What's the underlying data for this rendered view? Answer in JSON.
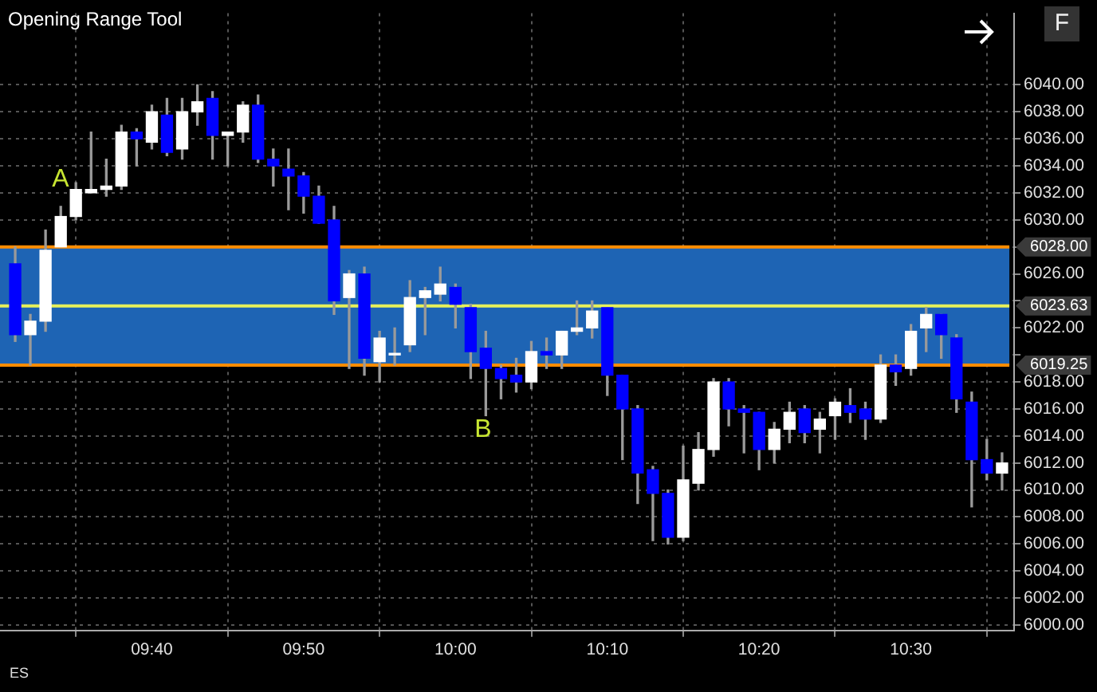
{
  "chart_data": {
    "type": "candlestick",
    "title": "Opening Range Tool",
    "x": [
      9.5167,
      9.5333,
      9.55,
      9.5667,
      9.5833,
      9.6,
      9.6167,
      9.6333,
      9.65,
      9.6667,
      9.6833,
      9.7,
      9.7167,
      9.7333,
      9.75,
      9.7667,
      9.7833,
      9.8,
      9.8167,
      9.8333,
      9.85,
      9.8667,
      9.8833,
      9.9,
      9.9167,
      9.9333,
      9.95,
      9.9667,
      9.9833,
      10,
      10.0167,
      10.0333,
      10.05,
      10.0667,
      10.0833,
      10.1,
      10.1167,
      10.1333,
      10.15,
      10.1667,
      10.1833,
      10.2,
      10.2167,
      10.2333,
      10.25,
      10.2667,
      10.2833,
      10.3,
      10.3167,
      10.3333,
      10.35,
      10.3667,
      10.3833,
      10.4,
      10.4167,
      10.4333,
      10.45,
      10.4667,
      10.4833,
      10.5,
      10.5167,
      10.5333,
      10.55,
      10.5667,
      10.5833,
      10.6
    ],
    "ohlc": [
      [
        6026.75,
        6028,
        6021,
        6021.5
      ],
      [
        6021.5,
        6023,
        6019.25,
        6022.5
      ],
      [
        6022.5,
        6029.25,
        6021.75,
        6027.75
      ],
      [
        6028,
        6031,
        6028,
        6030.25
      ],
      [
        6030.25,
        6032.75,
        6030,
        6032.25
      ],
      [
        6032,
        6036.5,
        6032,
        6032.25
      ],
      [
        6032.25,
        6034.5,
        6031.75,
        6032.5
      ],
      [
        6032.5,
        6037,
        6032.25,
        6036.5
      ],
      [
        6036.5,
        6036.75,
        6034,
        6036
      ],
      [
        6035.75,
        6038.5,
        6035.25,
        6038
      ],
      [
        6037.75,
        6039,
        6034.75,
        6035
      ],
      [
        6035.25,
        6039,
        6034.5,
        6038
      ],
      [
        6038,
        6040,
        6037,
        6038.75
      ],
      [
        6039,
        6039.5,
        6034.5,
        6036.25
      ],
      [
        6036.25,
        6036.5,
        6034,
        6036.5
      ],
      [
        6036.5,
        6038.75,
        6035.75,
        6038.5
      ],
      [
        6038.5,
        6039.25,
        6034.25,
        6034.5
      ],
      [
        6034.5,
        6035.25,
        6032.5,
        6034
      ],
      [
        6033.75,
        6035.25,
        6030.75,
        6033.25
      ],
      [
        6033.25,
        6033.5,
        6030.5,
        6031.75
      ],
      [
        6031.75,
        6032.5,
        6029.75,
        6029.75
      ],
      [
        6030,
        6031,
        6023,
        6024
      ],
      [
        6024.25,
        6026.25,
        6019,
        6026
      ],
      [
        6026,
        6026.5,
        6018.5,
        6019.75
      ],
      [
        6019.5,
        6021.75,
        6018,
        6021.25
      ],
      [
        6020,
        6022,
        6019.25,
        6020
      ],
      [
        6020.75,
        6025.5,
        6020.25,
        6024.25
      ],
      [
        6024.25,
        6025,
        6021.5,
        6024.75
      ],
      [
        6024.5,
        6026.5,
        6024,
        6025.25
      ],
      [
        6025,
        6025.25,
        6022,
        6023.75
      ],
      [
        6023.5,
        6023.75,
        6018.25,
        6020.25
      ],
      [
        6020.5,
        6021.75,
        6015.5,
        6019
      ],
      [
        6019,
        6019.25,
        6016.75,
        6018.25
      ],
      [
        6018.5,
        6019.75,
        6017.25,
        6018
      ],
      [
        6018,
        6021,
        6017.5,
        6020.25
      ],
      [
        6020.25,
        6021.25,
        6019,
        6020
      ],
      [
        6020,
        6021.75,
        6019,
        6021.75
      ],
      [
        6021.75,
        6024,
        6021.5,
        6022
      ],
      [
        6022,
        6024,
        6021.25,
        6023.25
      ],
      [
        6023.5,
        6023.5,
        6017,
        6018.5
      ],
      [
        6018.5,
        6018.5,
        6012.25,
        6016
      ],
      [
        6016,
        6016.25,
        6009,
        6011.25
      ],
      [
        6011.5,
        6011.75,
        6006.25,
        6009.75
      ],
      [
        6009.75,
        6010,
        6006,
        6006.5
      ],
      [
        6006.5,
        6013.25,
        6006.25,
        6010.75
      ],
      [
        6010.5,
        6014.25,
        6010,
        6013
      ],
      [
        6013,
        6018.25,
        6012.5,
        6018
      ],
      [
        6018,
        6018.25,
        6014.75,
        6016
      ],
      [
        6016,
        6016.25,
        6012.75,
        6015.75
      ],
      [
        6015.75,
        6015.75,
        6011.5,
        6013
      ],
      [
        6013,
        6015,
        6012,
        6014.5
      ],
      [
        6014.5,
        6016.5,
        6013.5,
        6015.75
      ],
      [
        6016,
        6016.25,
        6013.5,
        6014.25
      ],
      [
        6014.5,
        6015.75,
        6012.75,
        6015.25
      ],
      [
        6015.5,
        6016.75,
        6013.75,
        6016.5
      ],
      [
        6016.25,
        6017.5,
        6015,
        6015.75
      ],
      [
        6016,
        6016.5,
        6013.75,
        6015.25
      ],
      [
        6015.25,
        6020,
        6015,
        6019.25
      ],
      [
        6019.25,
        6020,
        6017.75,
        6018.75
      ],
      [
        6019,
        6022.25,
        6018.5,
        6021.75
      ],
      [
        6022,
        6023.5,
        6020.25,
        6023
      ],
      [
        6023,
        6023,
        6019.75,
        6021.5
      ],
      [
        6021.25,
        6021.5,
        6015.75,
        6016.75
      ],
      [
        6016.5,
        6017.25,
        6008.75,
        6012.25
      ],
      [
        6012.25,
        6013.75,
        6010.75,
        6011.25
      ],
      [
        6011.25,
        6012.75,
        6010,
        6012
      ]
    ],
    "colors": [
      "#0000ff",
      "#ffffff",
      "#ffffff",
      "#ffffff",
      "#ffffff",
      "#ffffff",
      "#ffffff",
      "#ffffff",
      "#0000ff",
      "#ffffff",
      "#0000ff",
      "#ffffff",
      "#ffffff",
      "#0000ff",
      "#ffffff",
      "#ffffff",
      "#0000ff",
      "#0000ff",
      "#0000ff",
      "#0000ff",
      "#0000ff",
      "#0000ff",
      "#ffffff",
      "#0000ff",
      "#ffffff",
      "#ffffff",
      "#ffffff",
      "#ffffff",
      "#ffffff",
      "#0000ff",
      "#0000ff",
      "#0000ff",
      "#0000ff",
      "#0000ff",
      "#ffffff",
      "#0000ff",
      "#ffffff",
      "#ffffff",
      "#ffffff",
      "#0000ff",
      "#0000ff",
      "#0000ff",
      "#0000ff",
      "#0000ff",
      "#ffffff",
      "#ffffff",
      "#ffffff",
      "#0000ff",
      "#0000ff",
      "#0000ff",
      "#ffffff",
      "#ffffff",
      "#0000ff",
      "#ffffff",
      "#ffffff",
      "#0000ff",
      "#0000ff",
      "#ffffff",
      "#0000ff",
      "#ffffff",
      "#ffffff",
      "#0000ff",
      "#0000ff",
      "#0000ff",
      "#0000ff",
      "#ffffff"
    ],
    "xlim": [
      9.5,
      10.6133
    ],
    "xticks": [
      {
        "value": 9.6667,
        "label": "09:40"
      },
      {
        "value": 9.8333,
        "label": "09:50"
      },
      {
        "value": 10,
        "label": "10:00"
      },
      {
        "value": 10.1667,
        "label": "10:10"
      },
      {
        "value": 10.3333,
        "label": "10:20"
      },
      {
        "value": 10.5,
        "label": "10:30"
      }
    ],
    "ylim": [
      5999.6,
      6045.3
    ],
    "yticks": [
      {
        "value": 6000,
        "label": "6000.00"
      },
      {
        "value": 6002,
        "label": "6002.00"
      },
      {
        "value": 6004,
        "label": "6004.00"
      },
      {
        "value": 6006,
        "label": "6006.00"
      },
      {
        "value": 6008,
        "label": "6008.00"
      },
      {
        "value": 6010,
        "label": "6010.00"
      },
      {
        "value": 6012,
        "label": "6012.00"
      },
      {
        "value": 6014,
        "label": "6014.00"
      },
      {
        "value": 6016,
        "label": "6016.00"
      },
      {
        "value": 6018,
        "label": "6018.00"
      },
      {
        "value": 6020,
        "label": null
      },
      {
        "value": 6022,
        "label": "6022.00"
      },
      {
        "value": 6024,
        "label": null
      },
      {
        "value": 6026,
        "label": "6026.00"
      },
      {
        "value": 6028,
        "label": null
      },
      {
        "value": 6030,
        "label": "6030.00"
      },
      {
        "value": 6032,
        "label": "6032.00"
      },
      {
        "value": 6034,
        "label": "6034.00"
      },
      {
        "value": 6036,
        "label": "6036.00"
      },
      {
        "value": 6038,
        "label": "6038.00"
      },
      {
        "value": 6040,
        "label": "6040.00"
      }
    ],
    "bands": [
      {
        "axis": "y",
        "from": 6019.25,
        "to": 6028,
        "color": "#1e64b4"
      }
    ],
    "ref_lines": [
      {
        "axis": "y",
        "value": 6028,
        "label": "6028.00",
        "color": "#ff8c00"
      },
      {
        "axis": "y",
        "value": 6023.63,
        "label": "6023.63",
        "color": "#e6f05a"
      },
      {
        "axis": "y",
        "value": 6019.25,
        "label": "6019.25",
        "color": "#ff8c00"
      }
    ],
    "annotations": [
      "A",
      "B",
      "ES",
      "F"
    ],
    "grid": true,
    "legend": false
  }
}
